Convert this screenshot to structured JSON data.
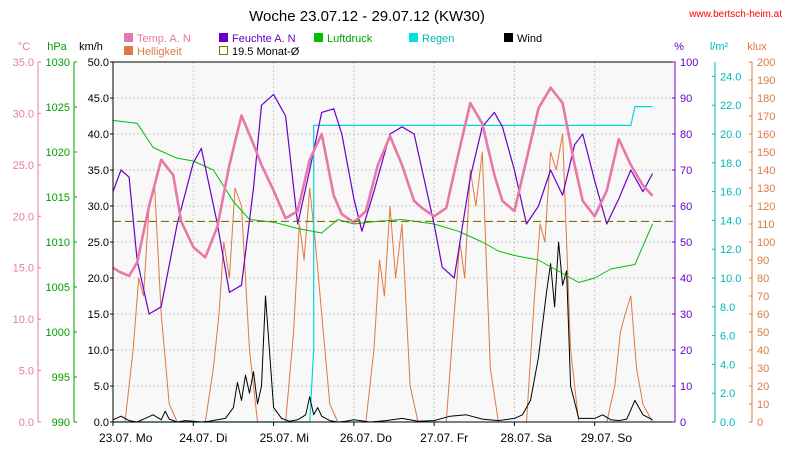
{
  "chart_data": {
    "type": "line",
    "title": "Woche 23.07.12 - 29.07.12 (KW30)",
    "source_credit": "www.bertsch-heim.at",
    "colors": {
      "temp": "#e878a8",
      "humidity": "#6a00c8",
      "pressure": "#00c000",
      "rain": "#00d8d8",
      "wind": "#000000",
      "brightness": "#e07840",
      "monthly_avg": "#807000",
      "plot_bg": "#f8f8f8",
      "grid": "#c8c8c8"
    },
    "legend": {
      "temp": "Temp. A. N",
      "humidity": "Feuchte A. N",
      "pressure": "Luftdruck",
      "rain": "Regen",
      "wind": "Wind",
      "brightness": "Helligkeit",
      "monthly_avg": "19.5 Monat-Ø"
    },
    "axes": {
      "temp": {
        "unit": "°C",
        "min": 0,
        "max": 35,
        "step": 5,
        "ticks": [
          "0.0",
          "5.0",
          "10.0",
          "15.0",
          "20.0",
          "25.0",
          "30.0",
          "35.0"
        ]
      },
      "pressure": {
        "unit": "hPa",
        "min": 990,
        "max": 1030,
        "step": 5,
        "ticks": [
          "990",
          "995",
          "1000",
          "1005",
          "1010",
          "1015",
          "1020",
          "1025",
          "1030"
        ]
      },
      "wind": {
        "unit": "km/h",
        "min": 0,
        "max": 50,
        "step": 5,
        "ticks": [
          "0.0",
          "5.0",
          "10.0",
          "15.0",
          "20.0",
          "25.0",
          "30.0",
          "35.0",
          "40.0",
          "45.0",
          "50.0"
        ]
      },
      "humidity": {
        "unit": "%",
        "min": 0,
        "max": 100,
        "step": 10,
        "ticks": [
          "0",
          "10",
          "20",
          "30",
          "40",
          "50",
          "60",
          "70",
          "80",
          "90",
          "100"
        ]
      },
      "rain": {
        "unit": "l/m²",
        "min": 0,
        "max": 25,
        "step": 2,
        "ticks": [
          "0.0",
          "2.0",
          "4.0",
          "6.0",
          "8.0",
          "10.0",
          "12.0",
          "14.0",
          "16.0",
          "18.0",
          "20.0",
          "22.0",
          "24.0"
        ]
      },
      "brightness": {
        "unit": "klux",
        "min": 0,
        "max": 200,
        "step": 10,
        "ticks": [
          "0",
          "10",
          "20",
          "30",
          "40",
          "50",
          "60",
          "70",
          "80",
          "90",
          "100",
          "110",
          "120",
          "130",
          "140",
          "150",
          "160",
          "170",
          "180",
          "190",
          "200"
        ]
      },
      "x": {
        "min": 0,
        "max": 7,
        "labels": [
          "23.07. Mo",
          "24.07. Di",
          "25.07. Mi",
          "26.07. Do",
          "27.07. Fr",
          "28.07. Sa",
          "29.07. So"
        ]
      }
    },
    "grid": true,
    "monthly_avg_value": 19.5,
    "series": [
      {
        "name": "Temp. A. N",
        "key": "temp",
        "x": [
          0,
          0.08,
          0.2,
          0.3,
          0.45,
          0.6,
          0.75,
          0.85,
          1.0,
          1.15,
          1.3,
          1.45,
          1.6,
          1.75,
          1.85,
          2.0,
          2.15,
          2.3,
          2.45,
          2.6,
          2.75,
          2.85,
          3.0,
          3.15,
          3.3,
          3.45,
          3.6,
          3.75,
          3.85,
          4.0,
          4.15,
          4.3,
          4.45,
          4.6,
          4.75,
          4.85,
          5.0,
          5.15,
          5.3,
          5.45,
          5.6,
          5.75,
          5.85,
          6.0,
          6.15,
          6.3,
          6.45,
          6.6,
          6.72
        ],
        "values": [
          15.0,
          14.6,
          14.2,
          15.5,
          21.0,
          25.5,
          24.0,
          19.5,
          17.0,
          16.0,
          19.0,
          25.0,
          29.8,
          27.0,
          25.0,
          22.5,
          19.8,
          20.5,
          25.5,
          28.0,
          22.0,
          20.2,
          19.4,
          20.5,
          25.0,
          27.8,
          25.0,
          21.5,
          20.8,
          20.0,
          20.8,
          26.0,
          31.0,
          29.0,
          24.0,
          21.5,
          20.5,
          25.5,
          30.5,
          32.5,
          31.0,
          25.0,
          21.5,
          20.0,
          22.5,
          27.5,
          25.0,
          23.0,
          22.0
        ]
      },
      {
        "name": "Feuchte A. N",
        "key": "humidity",
        "x": [
          0,
          0.1,
          0.2,
          0.3,
          0.45,
          0.6,
          0.8,
          1.0,
          1.1,
          1.3,
          1.45,
          1.6,
          1.75,
          1.85,
          2.0,
          2.15,
          2.3,
          2.45,
          2.6,
          2.75,
          2.85,
          3.0,
          3.1,
          3.25,
          3.45,
          3.6,
          3.75,
          3.85,
          4.0,
          4.1,
          4.25,
          4.45,
          4.6,
          4.75,
          4.85,
          5.0,
          5.15,
          5.3,
          5.45,
          5.6,
          5.75,
          5.85,
          6.0,
          6.15,
          6.3,
          6.45,
          6.6,
          6.72
        ],
        "values": [
          64,
          70,
          68,
          45,
          30,
          32,
          55,
          72,
          76,
          55,
          36,
          38,
          65,
          88,
          91,
          85,
          55,
          70,
          86,
          87,
          80,
          62,
          53,
          64,
          80,
          82,
          80,
          70,
          55,
          43,
          40,
          68,
          82,
          86,
          82,
          70,
          55,
          60,
          70,
          63,
          77,
          80,
          67,
          55,
          62,
          70,
          64,
          69
        ]
      },
      {
        "name": "Luftdruck",
        "key": "pressure",
        "x": [
          0,
          0.3,
          0.5,
          0.8,
          1.0,
          1.25,
          1.5,
          1.7,
          2.0,
          2.3,
          2.6,
          2.8,
          3.0,
          3.3,
          3.6,
          4.0,
          4.3,
          4.6,
          4.8,
          5.0,
          5.3,
          5.6,
          5.8,
          6.0,
          6.2,
          6.5,
          6.72
        ],
        "values": [
          1023.5,
          1023.2,
          1020.5,
          1019.3,
          1019.0,
          1018.0,
          1014.5,
          1012.5,
          1012.2,
          1011.5,
          1011.0,
          1012.5,
          1012.0,
          1012.3,
          1012.5,
          1012.0,
          1011.2,
          1010.0,
          1009.0,
          1008.5,
          1008.0,
          1006.5,
          1005.5,
          1006.0,
          1007.0,
          1007.5,
          1012.0
        ]
      },
      {
        "name": "Regen",
        "key": "rain",
        "x": [
          0,
          2.45,
          2.5,
          2.5,
          4.0,
          5.0,
          6.0,
          6.45,
          6.5,
          6.72
        ],
        "values": [
          0,
          0,
          5.0,
          20.6,
          20.6,
          20.6,
          20.6,
          20.6,
          21.9,
          21.9
        ]
      },
      {
        "name": "Wind",
        "key": "wind",
        "x": [
          0,
          0.1,
          0.2,
          0.3,
          0.4,
          0.5,
          0.6,
          0.65,
          0.7,
          0.8,
          0.9,
          1.0,
          1.1,
          1.2,
          1.3,
          1.4,
          1.5,
          1.55,
          1.6,
          1.65,
          1.7,
          1.75,
          1.8,
          1.85,
          1.9,
          2.0,
          2.1,
          2.2,
          2.3,
          2.4,
          2.45,
          2.5,
          2.55,
          2.6,
          2.7,
          2.8,
          2.9,
          3.0,
          3.2,
          3.4,
          3.6,
          3.8,
          4.0,
          4.2,
          4.4,
          4.6,
          4.8,
          5.0,
          5.1,
          5.2,
          5.3,
          5.4,
          5.45,
          5.5,
          5.55,
          5.6,
          5.65,
          5.7,
          5.8,
          6.0,
          6.1,
          6.2,
          6.3,
          6.4,
          6.5,
          6.6,
          6.72
        ],
        "values": [
          0.3,
          0.8,
          0.2,
          0.0,
          0.5,
          1.0,
          0.3,
          1.5,
          0.4,
          0.0,
          0.2,
          0.1,
          0.0,
          0.1,
          0.3,
          0.5,
          2.0,
          5.5,
          3.0,
          6.5,
          4.0,
          7.0,
          2.5,
          5.0,
          17.5,
          2.0,
          0.5,
          0.1,
          0.3,
          1.0,
          3.5,
          1.0,
          2.0,
          0.8,
          0.2,
          0.0,
          0.1,
          0.3,
          0.0,
          0.2,
          0.5,
          0.1,
          0.2,
          0.8,
          1.0,
          0.4,
          0.2,
          0.5,
          1.0,
          3.0,
          9.0,
          18.0,
          22.0,
          16.0,
          25.0,
          19.0,
          21.0,
          5.0,
          0.5,
          0.5,
          1.0,
          0.3,
          0.2,
          0.4,
          3.0,
          1.0,
          0.3
        ]
      },
      {
        "name": "Helligkeit",
        "key": "brightness",
        "x": [
          0,
          0.15,
          0.25,
          0.32,
          0.38,
          0.45,
          0.52,
          0.6,
          0.7,
          0.8,
          1.0,
          1.15,
          1.25,
          1.32,
          1.38,
          1.45,
          1.52,
          1.6,
          1.7,
          1.8,
          2.0,
          2.15,
          2.25,
          2.32,
          2.38,
          2.45,
          2.52,
          2.6,
          2.7,
          2.8,
          3.0,
          3.15,
          3.25,
          3.32,
          3.38,
          3.45,
          3.52,
          3.6,
          3.7,
          3.8,
          4.0,
          4.15,
          4.25,
          4.32,
          4.38,
          4.45,
          4.52,
          4.6,
          4.7,
          4.8,
          5.0,
          5.15,
          5.25,
          5.32,
          5.38,
          5.45,
          5.52,
          5.6,
          5.7,
          5.8,
          6.0,
          6.15,
          6.25,
          6.32,
          6.38,
          6.45,
          6.52,
          6.6,
          6.72
        ],
        "values": [
          0,
          0,
          40,
          80,
          70,
          120,
          130,
          60,
          10,
          0,
          0,
          0,
          30,
          60,
          100,
          80,
          130,
          120,
          40,
          0,
          0,
          0,
          50,
          110,
          90,
          130,
          100,
          60,
          10,
          0,
          0,
          0,
          40,
          90,
          70,
          120,
          80,
          110,
          20,
          0,
          0,
          0,
          60,
          100,
          80,
          140,
          120,
          150,
          30,
          0,
          0,
          0,
          70,
          110,
          100,
          150,
          140,
          160,
          40,
          0,
          0,
          0,
          20,
          50,
          60,
          70,
          30,
          10,
          0
        ]
      }
    ]
  }
}
